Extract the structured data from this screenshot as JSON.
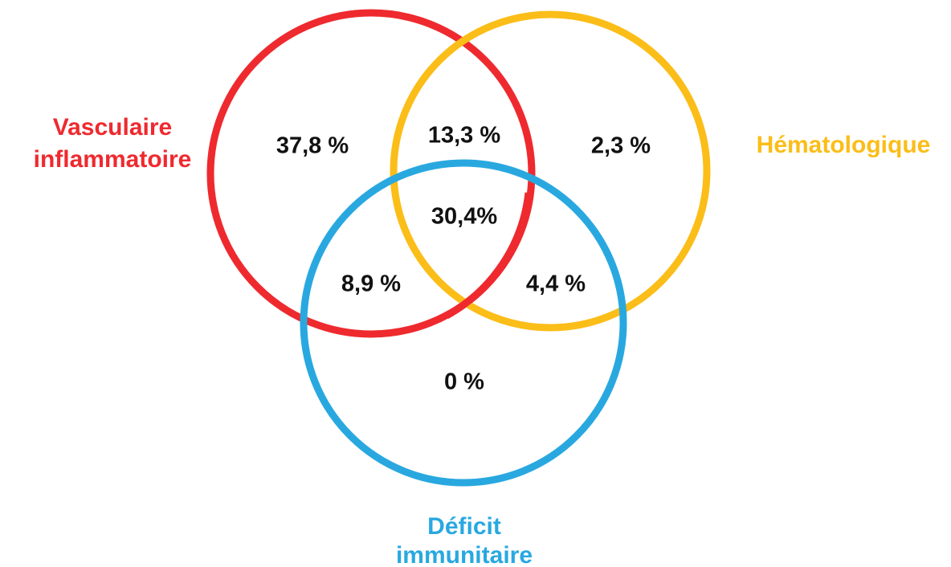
{
  "sets": [
    {
      "label_lines": [
        "Vasculaire",
        "inflammatoire"
      ]
    },
    {
      "label_lines": [
        "Hématologique"
      ]
    },
    {
      "label_lines": [
        "Déficit",
        "immunitaire"
      ]
    }
  ],
  "regions": [
    {
      "label": "37,8 %"
    },
    {
      "label": "13,3 %"
    },
    {
      "label": "2,3 %"
    },
    {
      "label": "30,4%"
    },
    {
      "label": "8,9 %"
    },
    {
      "label": "4,4 %"
    },
    {
      "label": "0 %"
    }
  ]
}
